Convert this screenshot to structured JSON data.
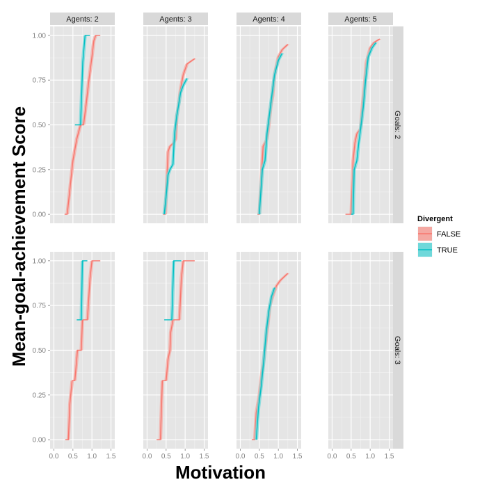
{
  "chart_data": {
    "type": "line",
    "xlabel": "Motivation",
    "ylabel": "Mean-goal-achievement Score",
    "xlim": [
      -0.1,
      1.6
    ],
    "ylim": [
      -0.05,
      1.05
    ],
    "x_ticks": [
      "0.0",
      "0.5",
      "1.0",
      "1.5"
    ],
    "y_ticks": [
      "0.00",
      "0.25",
      "0.50",
      "0.75",
      "1.00"
    ],
    "col_facets": [
      "Agents: 2",
      "Agents: 3",
      "Agents: 4",
      "Agents: 5"
    ],
    "row_facets": [
      "Goals: 2",
      "Goals: 3"
    ],
    "legend": {
      "title": "Divergent",
      "entries": [
        {
          "label": "FALSE",
          "line": "#f8766d",
          "fill": "#f4a8a2"
        },
        {
          "label": "TRUE",
          "line": "#00bfc4",
          "fill": "#6fd8da"
        }
      ]
    },
    "panels": [
      {
        "row": 0,
        "col": 0,
        "series": [
          {
            "name": "FALSE",
            "points": [
              [
                0.28,
                0
              ],
              [
                0.35,
                0
              ],
              [
                0.4,
                0.1
              ],
              [
                0.5,
                0.3
              ],
              [
                0.6,
                0.42
              ],
              [
                0.7,
                0.5
              ],
              [
                0.78,
                0.5
              ],
              [
                0.85,
                0.62
              ],
              [
                0.92,
                0.75
              ],
              [
                1.0,
                0.88
              ],
              [
                1.05,
                0.97
              ],
              [
                1.1,
                1.0
              ],
              [
                1.22,
                1.0
              ]
            ]
          },
          {
            "name": "TRUE",
            "points": [
              [
                0.55,
                0.5
              ],
              [
                0.7,
                0.5
              ],
              [
                0.76,
                0.85
              ],
              [
                0.82,
                1.0
              ],
              [
                0.95,
                1.0
              ]
            ]
          }
        ]
      },
      {
        "row": 0,
        "col": 1,
        "series": [
          {
            "name": "FALSE",
            "points": [
              [
                0.42,
                0
              ],
              [
                0.48,
                0
              ],
              [
                0.52,
                0.2
              ],
              [
                0.55,
                0.35
              ],
              [
                0.6,
                0.38
              ],
              [
                0.7,
                0.4
              ],
              [
                0.75,
                0.42
              ],
              [
                0.78,
                0.55
              ],
              [
                0.82,
                0.6
              ],
              [
                0.88,
                0.7
              ],
              [
                0.95,
                0.78
              ],
              [
                1.05,
                0.84
              ],
              [
                1.25,
                0.87
              ]
            ]
          },
          {
            "name": "TRUE",
            "points": [
              [
                0.45,
                0
              ],
              [
                0.5,
                0.1
              ],
              [
                0.55,
                0.22
              ],
              [
                0.6,
                0.25
              ],
              [
                0.68,
                0.28
              ],
              [
                0.72,
                0.45
              ],
              [
                0.78,
                0.55
              ],
              [
                0.82,
                0.6
              ],
              [
                0.88,
                0.68
              ],
              [
                0.95,
                0.72
              ],
              [
                1.05,
                0.76
              ]
            ]
          }
        ]
      },
      {
        "row": 0,
        "col": 2,
        "series": [
          {
            "name": "FALSE",
            "points": [
              [
                0.45,
                0
              ],
              [
                0.5,
                0
              ],
              [
                0.55,
                0.2
              ],
              [
                0.6,
                0.38
              ],
              [
                0.7,
                0.42
              ],
              [
                0.75,
                0.5
              ],
              [
                0.8,
                0.6
              ],
              [
                0.85,
                0.66
              ],
              [
                0.9,
                0.78
              ],
              [
                1.0,
                0.88
              ],
              [
                1.1,
                0.92
              ],
              [
                1.25,
                0.95
              ]
            ]
          },
          {
            "name": "TRUE",
            "points": [
              [
                0.5,
                0
              ],
              [
                0.58,
                0.25
              ],
              [
                0.65,
                0.3
              ],
              [
                0.7,
                0.45
              ],
              [
                0.78,
                0.58
              ],
              [
                0.82,
                0.65
              ],
              [
                0.9,
                0.78
              ],
              [
                1.0,
                0.86
              ],
              [
                1.1,
                0.9
              ]
            ]
          }
        ]
      },
      {
        "row": 0,
        "col": 3,
        "series": [
          {
            "name": "FALSE",
            "points": [
              [
                0.35,
                0
              ],
              [
                0.5,
                0
              ],
              [
                0.55,
                0.3
              ],
              [
                0.6,
                0.4
              ],
              [
                0.65,
                0.45
              ],
              [
                0.75,
                0.48
              ],
              [
                0.8,
                0.62
              ],
              [
                0.85,
                0.72
              ],
              [
                0.9,
                0.85
              ],
              [
                1.0,
                0.93
              ],
              [
                1.1,
                0.96
              ],
              [
                1.25,
                0.98
              ]
            ]
          },
          {
            "name": "TRUE",
            "points": [
              [
                0.5,
                0
              ],
              [
                0.55,
                0
              ],
              [
                0.58,
                0.25
              ],
              [
                0.65,
                0.3
              ],
              [
                0.7,
                0.4
              ],
              [
                0.75,
                0.48
              ],
              [
                0.82,
                0.6
              ],
              [
                0.88,
                0.75
              ],
              [
                0.95,
                0.88
              ],
              [
                1.05,
                0.93
              ],
              [
                1.15,
                0.96
              ]
            ]
          }
        ]
      },
      {
        "row": 1,
        "col": 0,
        "series": [
          {
            "name": "FALSE",
            "points": [
              [
                0.3,
                0
              ],
              [
                0.38,
                0
              ],
              [
                0.42,
                0.2
              ],
              [
                0.48,
                0.33
              ],
              [
                0.55,
                0.33
              ],
              [
                0.6,
                0.45
              ],
              [
                0.62,
                0.5
              ],
              [
                0.72,
                0.5
              ],
              [
                0.75,
                0.67
              ],
              [
                0.88,
                0.67
              ],
              [
                0.95,
                0.9
              ],
              [
                1.0,
                1.0
              ],
              [
                1.22,
                1.0
              ]
            ]
          },
          {
            "name": "TRUE",
            "points": [
              [
                0.6,
                0.67
              ],
              [
                0.72,
                0.67
              ],
              [
                0.75,
                1.0
              ],
              [
                0.88,
                1.0
              ]
            ]
          }
        ]
      },
      {
        "row": 1,
        "col": 1,
        "series": [
          {
            "name": "FALSE",
            "points": [
              [
                0.25,
                0
              ],
              [
                0.35,
                0
              ],
              [
                0.4,
                0.33
              ],
              [
                0.5,
                0.33
              ],
              [
                0.55,
                0.45
              ],
              [
                0.6,
                0.5
              ],
              [
                0.62,
                0.6
              ],
              [
                0.68,
                0.67
              ],
              [
                0.85,
                0.67
              ],
              [
                0.9,
                0.9
              ],
              [
                0.95,
                1.0
              ],
              [
                1.25,
                1.0
              ]
            ]
          },
          {
            "name": "TRUE",
            "points": [
              [
                0.45,
                0.67
              ],
              [
                0.65,
                0.67
              ],
              [
                0.7,
                1.0
              ],
              [
                0.9,
                1.0
              ]
            ]
          }
        ]
      },
      {
        "row": 1,
        "col": 2,
        "series": [
          {
            "name": "FALSE",
            "points": [
              [
                0.3,
                0
              ],
              [
                0.38,
                0
              ],
              [
                0.42,
                0.15
              ],
              [
                0.5,
                0.25
              ],
              [
                0.55,
                0.35
              ],
              [
                0.62,
                0.45
              ],
              [
                0.7,
                0.6
              ],
              [
                0.78,
                0.75
              ],
              [
                0.85,
                0.8
              ],
              [
                0.95,
                0.86
              ],
              [
                1.05,
                0.89
              ],
              [
                1.15,
                0.91
              ],
              [
                1.25,
                0.93
              ]
            ]
          },
          {
            "name": "TRUE",
            "points": [
              [
                0.42,
                0
              ],
              [
                0.48,
                0.18
              ],
              [
                0.55,
                0.3
              ],
              [
                0.62,
                0.45
              ],
              [
                0.68,
                0.6
              ],
              [
                0.75,
                0.72
              ],
              [
                0.82,
                0.8
              ],
              [
                0.9,
                0.85
              ]
            ]
          }
        ]
      },
      {
        "row": 1,
        "col": 3,
        "series": []
      }
    ]
  }
}
